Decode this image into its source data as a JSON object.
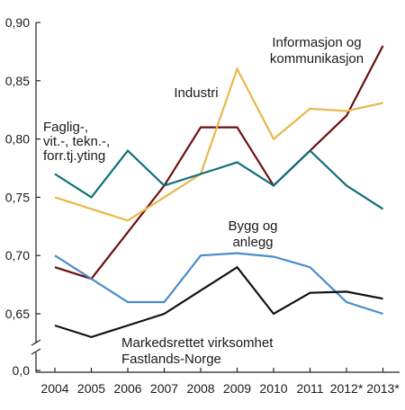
{
  "chart_data": {
    "type": "line",
    "title": "",
    "xlabel": "",
    "ylabel": "",
    "x": [
      "2004",
      "2005",
      "2006",
      "2007",
      "2008",
      "2009",
      "2010",
      "2011",
      "2012*",
      "2013*"
    ],
    "ylim": [
      0.6,
      0.9
    ],
    "y_break": true,
    "y_ticks": [
      "0,0",
      "0,65",
      "0,70",
      "0,75",
      "0,80",
      "0,85",
      "0,90"
    ],
    "grid": false,
    "series": [
      {
        "name": "Informasjon og kommunikasjon",
        "label_lines": [
          "Informasjon og",
          "kommunikasjon"
        ],
        "color": "#6b0f0f",
        "values": [
          0.69,
          0.68,
          0.72,
          0.76,
          0.81,
          0.81,
          0.76,
          0.79,
          0.82,
          0.88
        ]
      },
      {
        "name": "Industri",
        "label_lines": [
          "Industri"
        ],
        "color": "#e8b84a",
        "values": [
          0.75,
          0.74,
          0.73,
          0.75,
          0.77,
          0.86,
          0.8,
          0.826,
          0.824,
          0.831
        ]
      },
      {
        "name": "Faglig-, vit.-, tekn.-, forr.tj.yting",
        "label_lines": [
          "Faglig-,",
          "vit.-, tekn.-,",
          "forr.tj.yting"
        ],
        "color": "#0d6e7a",
        "values": [
          0.77,
          0.75,
          0.79,
          0.76,
          0.77,
          0.78,
          0.76,
          0.79,
          0.76,
          0.74
        ]
      },
      {
        "name": "Bygg og anlegg",
        "label_lines": [
          "Bygg og",
          "anlegg"
        ],
        "color": "#4a8cc9",
        "values": [
          0.7,
          0.68,
          0.66,
          0.66,
          0.7,
          0.702,
          0.699,
          0.69,
          0.66,
          0.65
        ]
      },
      {
        "name": "Markedsrettet virksomhet Fastlands-Norge",
        "label_lines": [
          "Markedsrettet virksomhet",
          "Fastlands-Norge"
        ],
        "color": "#111111",
        "values": [
          0.64,
          0.63,
          0.64,
          0.65,
          0.67,
          0.69,
          0.65,
          0.668,
          0.669,
          0.663
        ]
      }
    ]
  }
}
